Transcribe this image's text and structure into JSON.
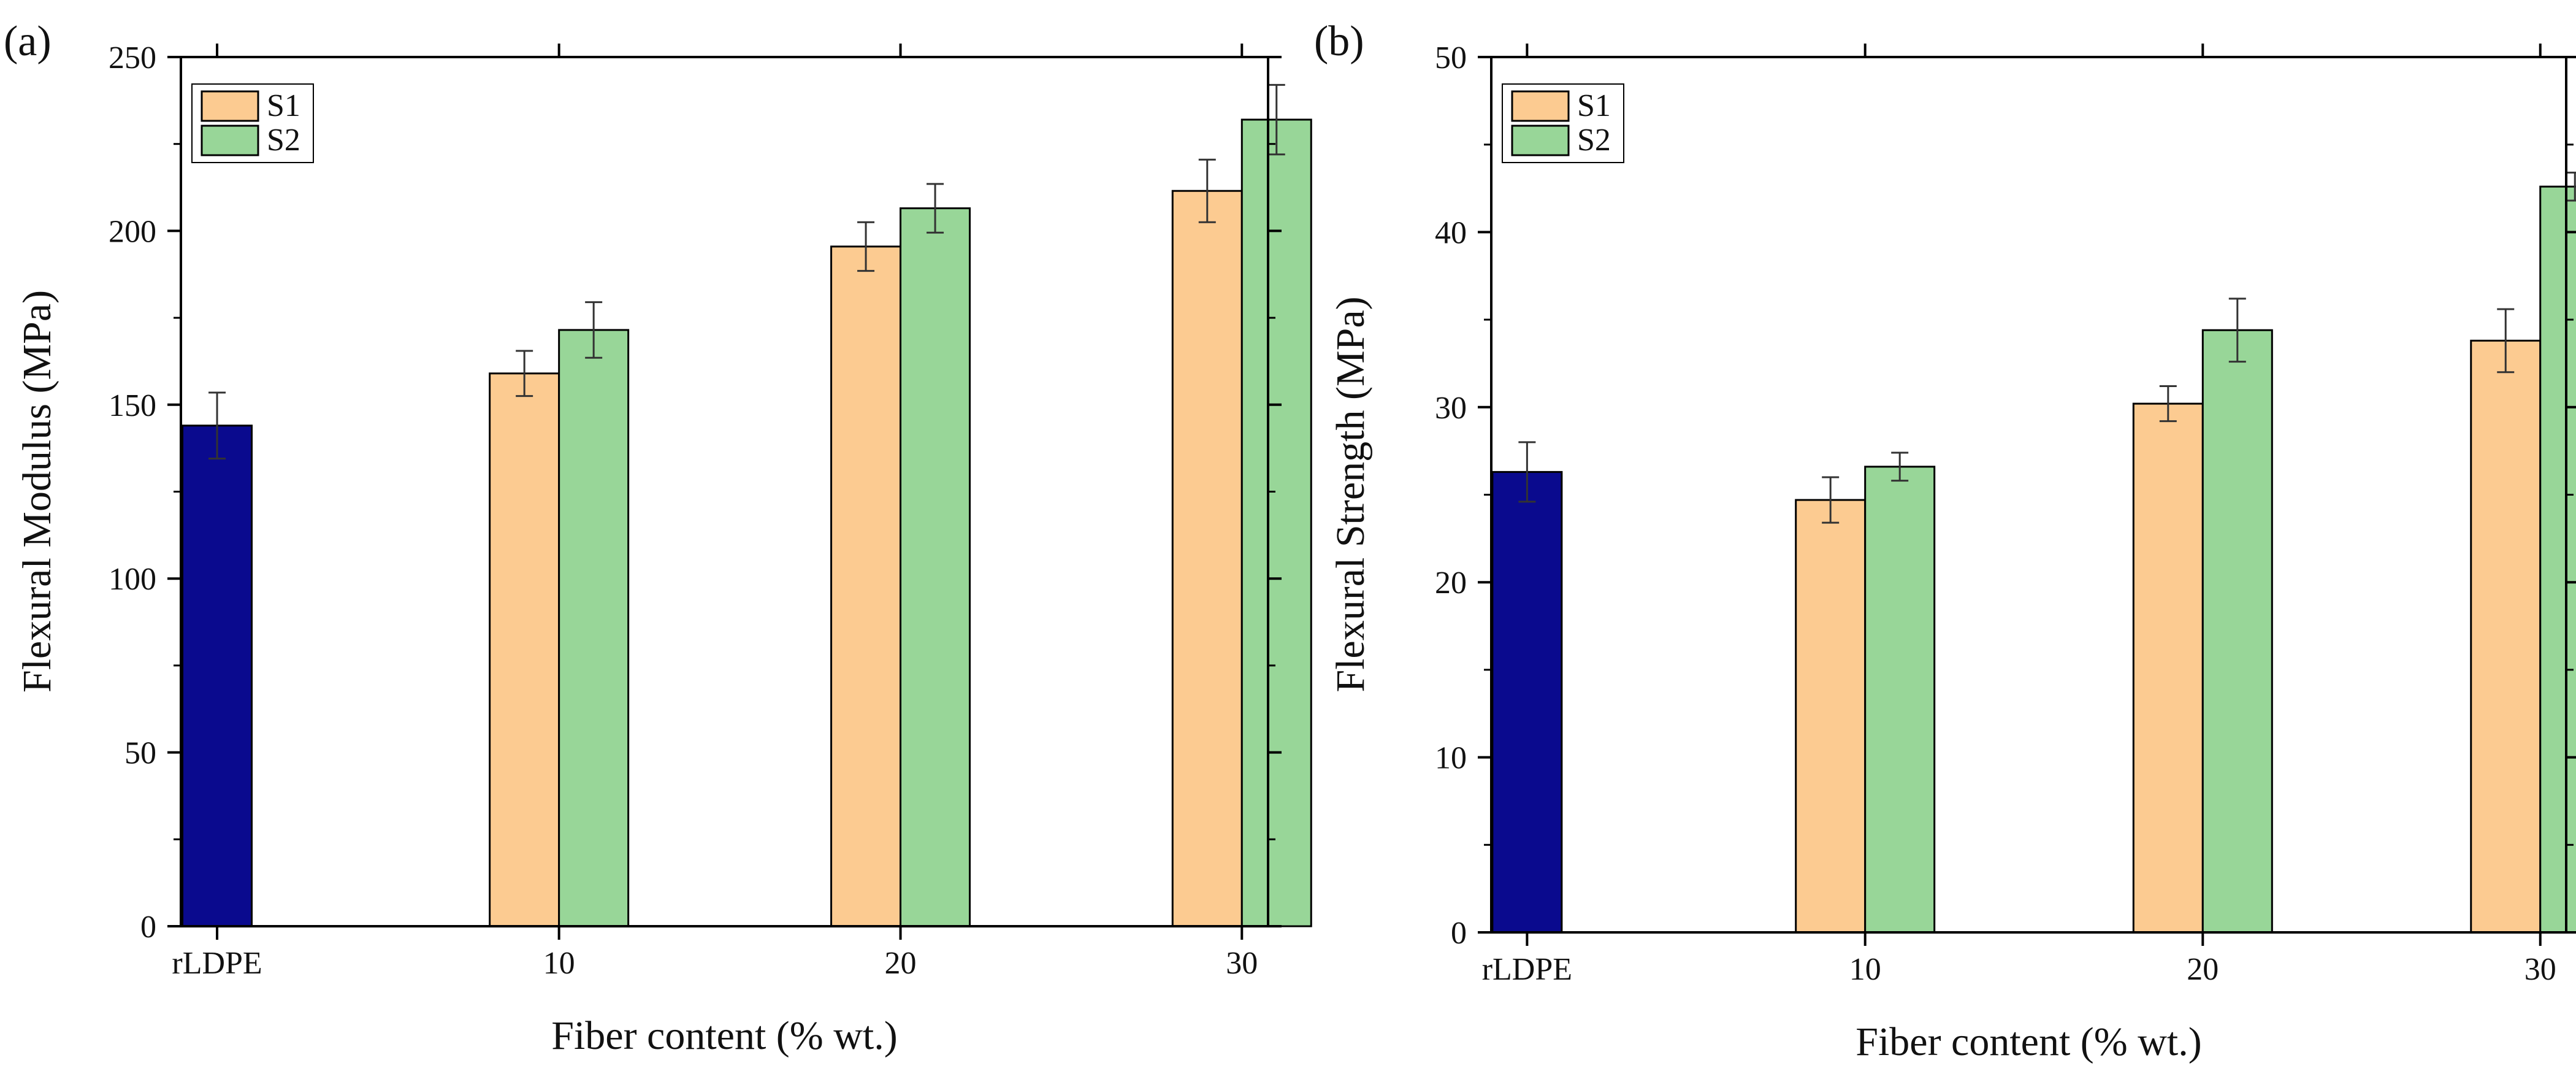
{
  "chart_data": [
    {
      "type": "bar",
      "panel_label": "(a)",
      "title": "",
      "xlabel": "Fiber content (% wt.)",
      "ylabel": "Flexural Modulus (MPa)",
      "categories": [
        "rLDPE",
        "10",
        "20",
        "30"
      ],
      "ylim": [
        0,
        250
      ],
      "yticks": [
        "0",
        "50",
        "100",
        "150",
        "200",
        "250"
      ],
      "legend_position": "top-left",
      "series": [
        {
          "name": "rLDPE",
          "in_legend": false,
          "color": "#0a0a8e",
          "values": [
            144,
            null,
            null,
            null
          ],
          "errors": [
            9.5,
            null,
            null,
            null
          ]
        },
        {
          "name": "S1",
          "in_legend": true,
          "color": "#fccb91",
          "values": [
            null,
            159,
            195.5,
            211.5
          ],
          "errors": [
            null,
            6.5,
            7,
            9
          ]
        },
        {
          "name": "S2",
          "in_legend": true,
          "color": "#98d698",
          "values": [
            null,
            171.5,
            206.5,
            232
          ],
          "errors": [
            null,
            8,
            7,
            10
          ]
        }
      ]
    },
    {
      "type": "bar",
      "panel_label": "(b)",
      "title": "",
      "xlabel": "Fiber content (% wt.)",
      "ylabel": "Flexural Strength (MPa)",
      "categories": [
        "rLDPE",
        "10",
        "20",
        "30"
      ],
      "ylim": [
        0,
        50
      ],
      "yticks": [
        "0",
        "10",
        "20",
        "30",
        "40",
        "50"
      ],
      "legend_position": "top-left",
      "series": [
        {
          "name": "rLDPE",
          "in_legend": false,
          "color": "#0a0a8e",
          "values": [
            26.3,
            null,
            null,
            null
          ],
          "errors": [
            1.7,
            null,
            null,
            null
          ]
        },
        {
          "name": "S1",
          "in_legend": true,
          "color": "#fccb91",
          "values": [
            null,
            24.7,
            30.2,
            33.8
          ],
          "errors": [
            null,
            1.3,
            1.0,
            1.8
          ]
        },
        {
          "name": "S2",
          "in_legend": true,
          "color": "#98d698",
          "values": [
            null,
            26.6,
            34.4,
            42.6
          ],
          "errors": [
            null,
            0.8,
            1.8,
            0.8
          ]
        }
      ]
    }
  ]
}
